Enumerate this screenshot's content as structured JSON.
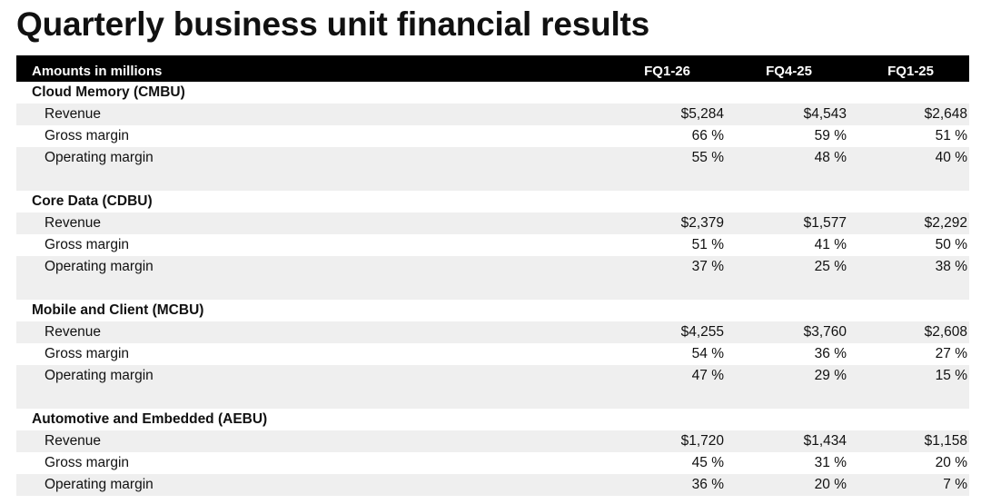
{
  "title": "Quarterly business unit financial results",
  "table": {
    "header": {
      "label": "Amounts in millions",
      "columns": [
        "FQ1-26",
        "FQ4-25",
        "FQ1-25"
      ]
    },
    "sections": [
      {
        "name": "Cloud Memory (CMBU)",
        "rows": [
          {
            "label": "Revenue",
            "values": [
              "$5,284",
              "$4,543",
              "$2,648"
            ]
          },
          {
            "label": "Gross margin",
            "values": [
              "66 %",
              "59 %",
              "51 %"
            ]
          },
          {
            "label": "Operating margin",
            "values": [
              "55 %",
              "48 %",
              "40 %"
            ]
          }
        ]
      },
      {
        "name": "Core Data (CDBU)",
        "rows": [
          {
            "label": "Revenue",
            "values": [
              "$2,379",
              "$1,577",
              "$2,292"
            ]
          },
          {
            "label": "Gross margin",
            "values": [
              "51 %",
              "41 %",
              "50 %"
            ]
          },
          {
            "label": "Operating margin",
            "values": [
              "37 %",
              "25 %",
              "38 %"
            ]
          }
        ]
      },
      {
        "name": "Mobile and Client (MCBU)",
        "rows": [
          {
            "label": "Revenue",
            "values": [
              "$4,255",
              "$3,760",
              "$2,608"
            ]
          },
          {
            "label": "Gross margin",
            "values": [
              "54 %",
              "36 %",
              "27 %"
            ]
          },
          {
            "label": "Operating margin",
            "values": [
              "47 %",
              "29 %",
              "15 %"
            ]
          }
        ]
      },
      {
        "name": "Automotive and Embedded (AEBU)",
        "rows": [
          {
            "label": "Revenue",
            "values": [
              "$1,720",
              "$1,434",
              "$1,158"
            ]
          },
          {
            "label": "Gross margin",
            "values": [
              "45 %",
              "31 %",
              "20 %"
            ]
          },
          {
            "label": "Operating margin",
            "values": [
              "36 %",
              "20 %",
              "7 %"
            ]
          }
        ]
      }
    ]
  }
}
